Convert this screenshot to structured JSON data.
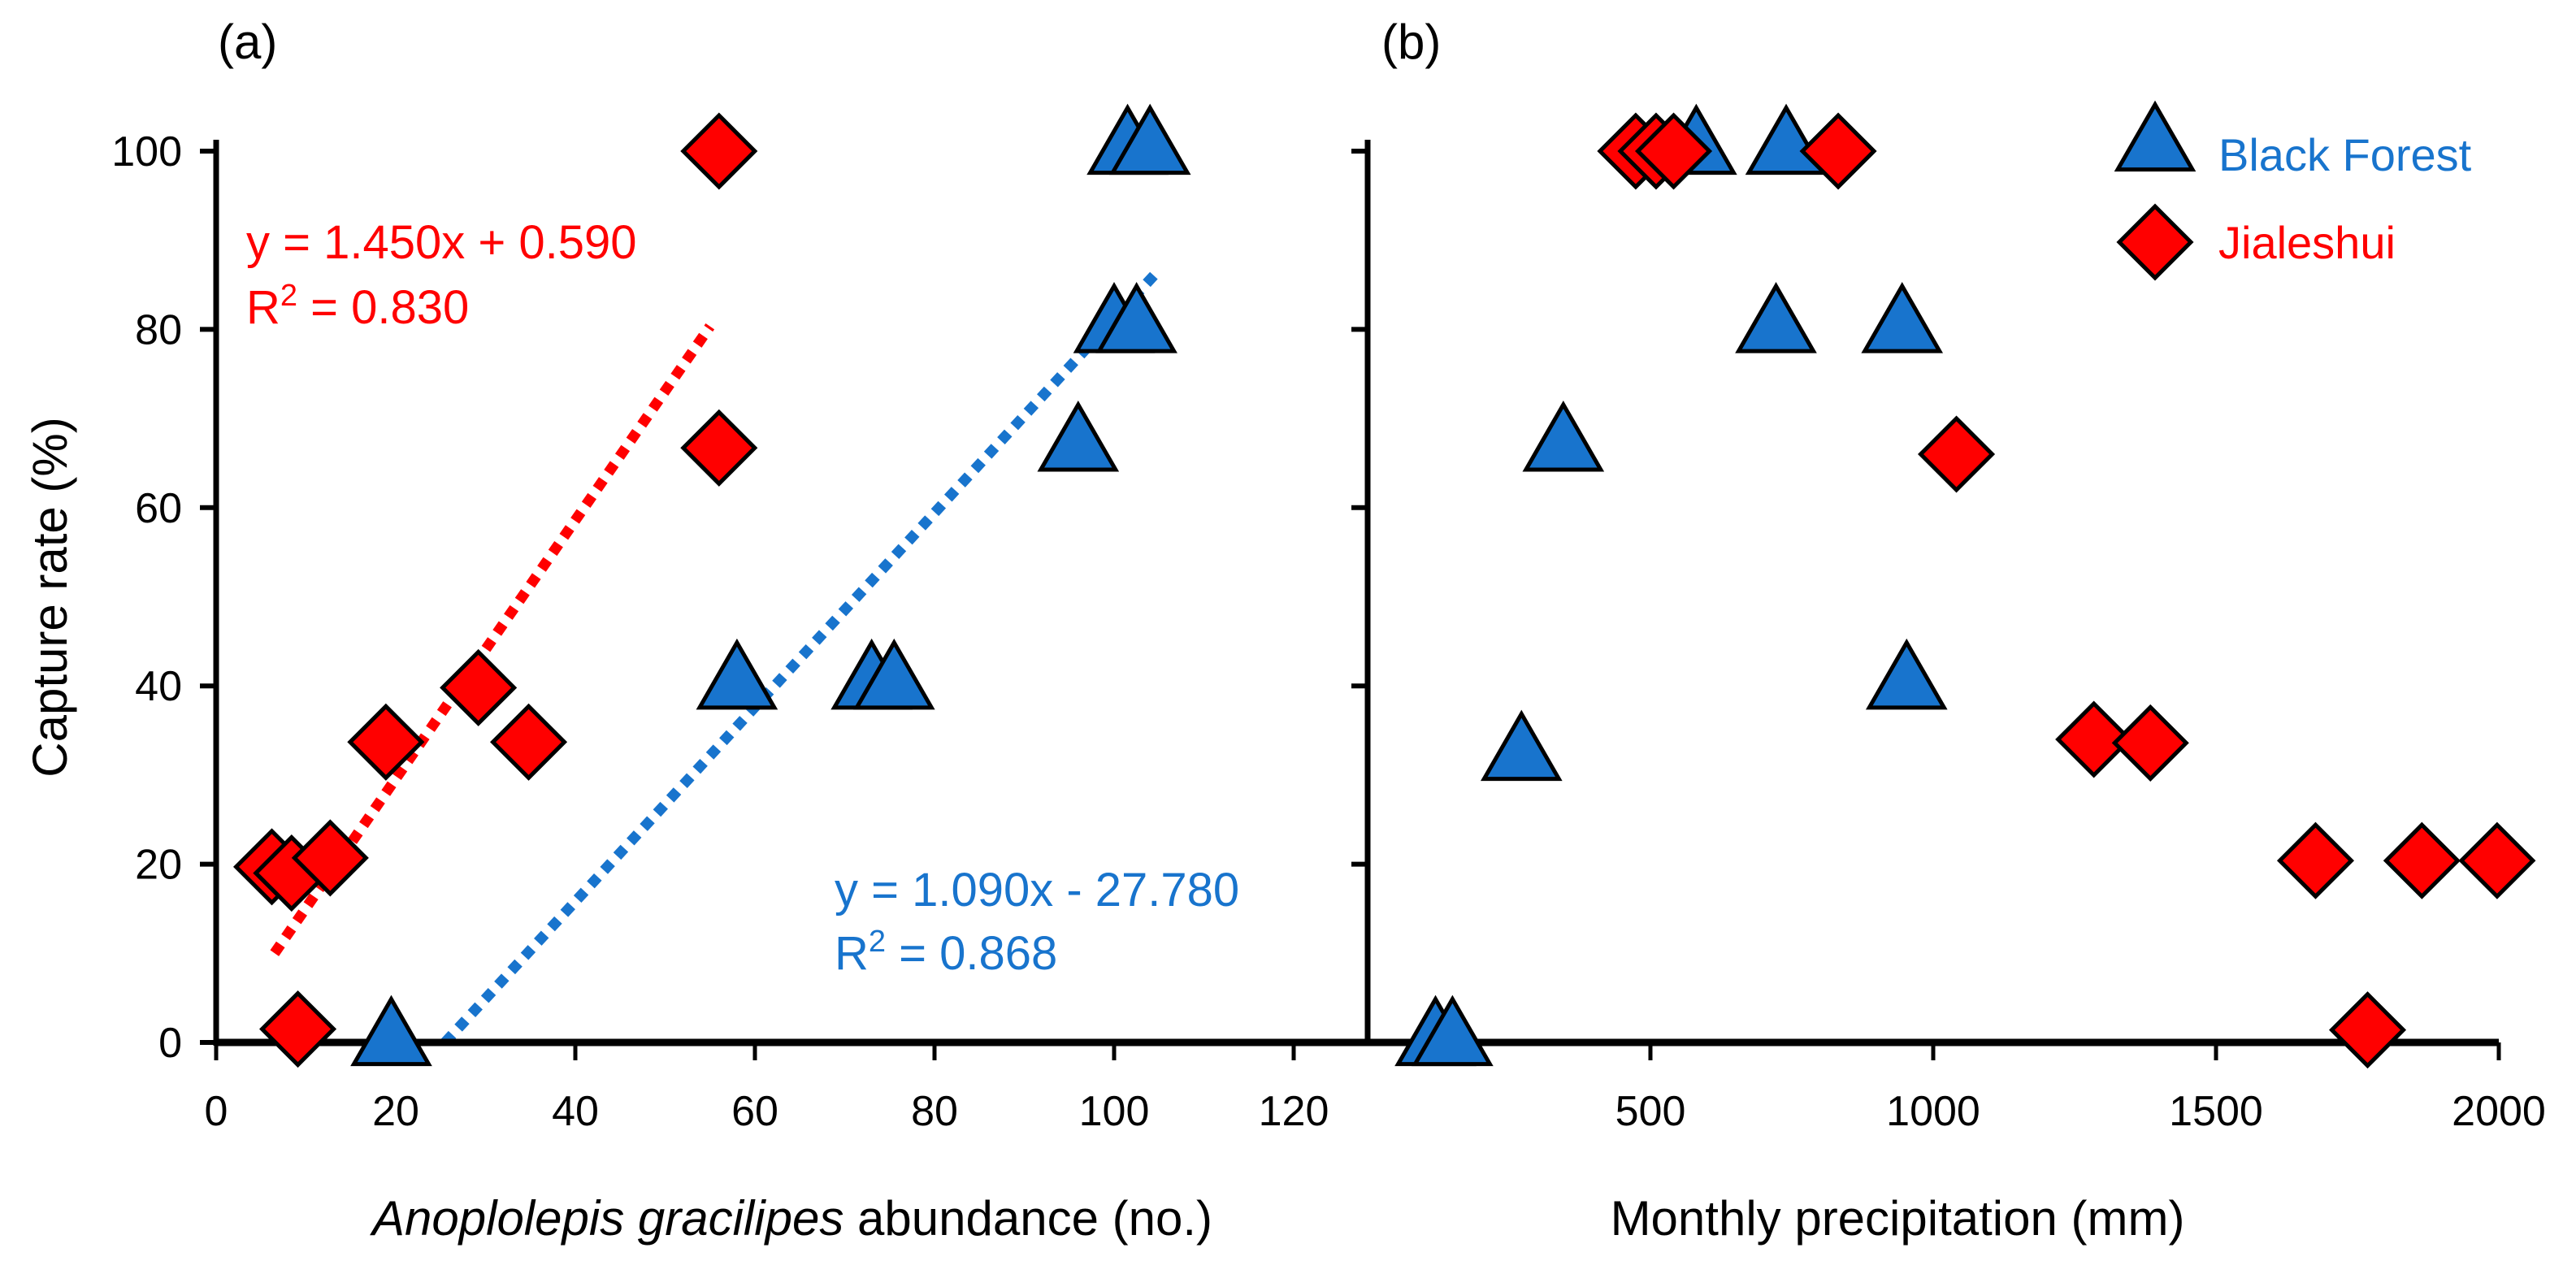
{
  "chart_data": [
    {
      "panel_label": "(a)",
      "type": "scatter",
      "xlabel_italic": "Anoplolepis gracilipes",
      "xlabel_rest": " abundance (no.)",
      "ylabel": "Capture rate (%)",
      "xlim": [
        0,
        128
      ],
      "ylim": [
        0,
        100
      ],
      "xticks": [
        "0",
        "20",
        "40",
        "60",
        "80",
        "100",
        "120"
      ],
      "yticks": [
        "0",
        "20",
        "40",
        "60",
        "80",
        "100"
      ],
      "series": [
        {
          "name": "Black Forest",
          "color": "#1874CD",
          "marker": "triangle",
          "points": [
            [
              19.5,
              0
            ],
            [
              58,
              40
            ],
            [
              73,
              40
            ],
            [
              75.5,
              40
            ],
            [
              96,
              66.7
            ],
            [
              100,
              80
            ],
            [
              102.5,
              80
            ],
            [
              101.5,
              100
            ],
            [
              104,
              100
            ]
          ],
          "trendline": {
            "slope": 1.09,
            "intercept": -27.78,
            "x_range": [
              25.5,
              104.5
            ],
            "equation": "y = 1.090x - 27.780",
            "r2_prefix": "R",
            "r2_sup": "2",
            "r2_rest": " = 0.868"
          }
        },
        {
          "name": "Jialeshui",
          "color": "#FF0000",
          "marker": "diamond",
          "points": [
            [
              6.2,
              19.7
            ],
            [
              8.4,
              19.0
            ],
            [
              12.7,
              20.7
            ],
            [
              18.9,
              33.7
            ],
            [
              29.2,
              39.8
            ],
            [
              34.8,
              33.7
            ],
            [
              9.1,
              1.5
            ],
            [
              56,
              66.7
            ],
            [
              56,
              100
            ]
          ],
          "trendline": {
            "slope": 1.45,
            "intercept": 0.59,
            "x_range": [
              6.5,
              55
            ],
            "equation": "y = 1.450x + 0.590",
            "r2_prefix": "R",
            "r2_sup": "2",
            "r2_rest": " = 0.830"
          }
        }
      ]
    },
    {
      "panel_label": "(b)",
      "type": "scatter",
      "xlabel": "Monthly precipitation (mm)",
      "xlim": [
        0,
        2000
      ],
      "ylim": [
        0,
        100
      ],
      "xticks": [
        "500",
        "1000",
        "1500",
        "2000"
      ],
      "yticks": [
        "0",
        "20",
        "40",
        "60",
        "80",
        "100"
      ],
      "series": [
        {
          "name": "Black Forest",
          "color": "#1874CD",
          "marker": "triangle",
          "points": [
            [
              120,
              0
            ],
            [
              150,
              0
            ],
            [
              272,
              32
            ],
            [
              346,
              66.7
            ],
            [
              581,
              100
            ],
            [
              740,
              100
            ],
            [
              722,
              80
            ],
            [
              945,
              80
            ],
            [
              953,
              40
            ]
          ]
        },
        {
          "name": "Jialeshui",
          "color": "#FF0000",
          "marker": "diamond",
          "points": [
            [
              474,
              100
            ],
            [
              510,
              100
            ],
            [
              541,
              100
            ],
            [
              832,
              100
            ],
            [
              1041,
              66
            ],
            [
              1284,
              34
            ],
            [
              1384,
              33.6
            ],
            [
              1676,
              20.4
            ],
            [
              1864,
              20.4
            ],
            [
              1997,
              20.4
            ],
            [
              1768,
              1.4
            ]
          ]
        }
      ],
      "legend": {
        "placement": "top-right",
        "entries": [
          {
            "label": "Black Forest",
            "marker": "triangle",
            "color": "#1874CD"
          },
          {
            "label": "Jialeshui",
            "marker": "diamond",
            "color": "#FF0000"
          }
        ]
      }
    }
  ]
}
